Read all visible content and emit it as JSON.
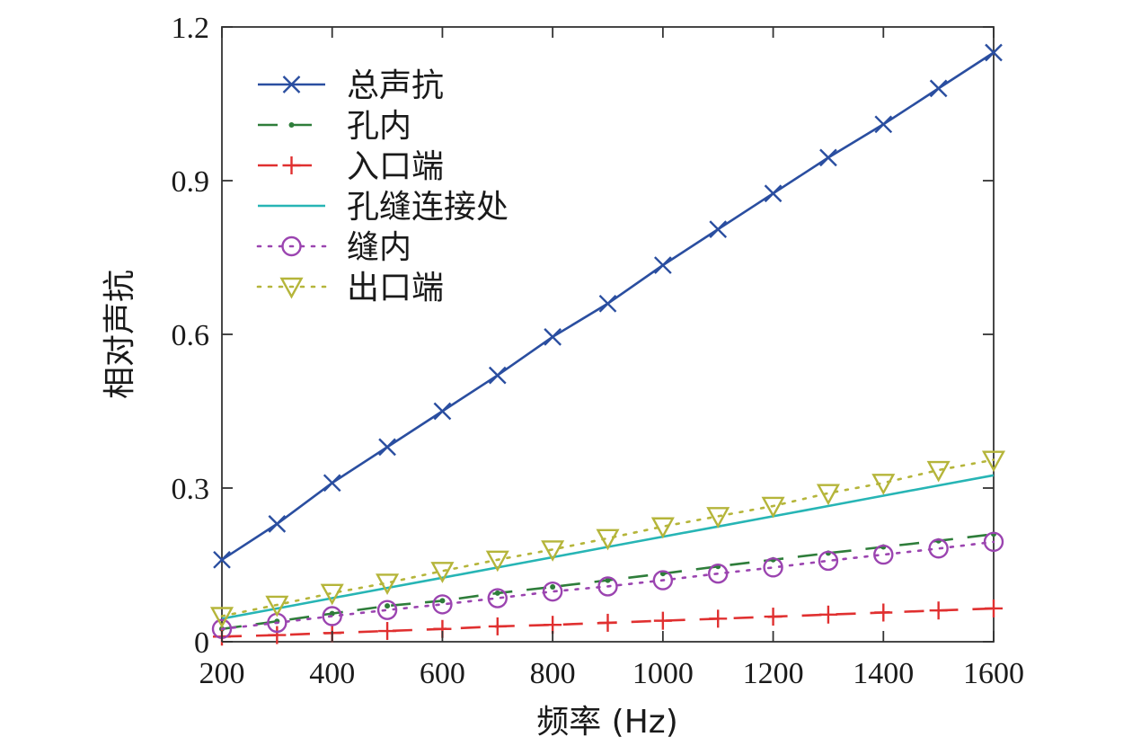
{
  "chart_data": {
    "type": "line",
    "title": "",
    "xlabel": "频率 (Hz)",
    "ylabel": "相对声抗",
    "xlim": [
      200,
      1600
    ],
    "ylim": [
      0,
      1.2
    ],
    "x_ticks": [
      200,
      400,
      600,
      800,
      1000,
      1200,
      1400,
      1600
    ],
    "y_ticks": [
      {
        "value": 0,
        "label": "0"
      },
      {
        "value": 0.3,
        "label": "0.3"
      },
      {
        "value": 0.6,
        "label": "0.6"
      },
      {
        "value": 0.9,
        "label": "0.9"
      },
      {
        "value": 1.2,
        "label": "1.2"
      }
    ],
    "grid": false,
    "legend_position": "top-left",
    "x": [
      200,
      300,
      400,
      500,
      600,
      700,
      800,
      900,
      1000,
      1100,
      1200,
      1300,
      1400,
      1500,
      1600
    ],
    "series": [
      {
        "name": "总声抗",
        "color": "#2a4ea0",
        "line": "solid",
        "marker": "x",
        "values": [
          0.16,
          0.23,
          0.31,
          0.38,
          0.45,
          0.52,
          0.595,
          0.66,
          0.735,
          0.805,
          0.875,
          0.945,
          1.01,
          1.08,
          1.15
        ]
      },
      {
        "name": "孔内",
        "color": "#2e7d3a",
        "line": "dash",
        "marker": "dot",
        "values": [
          0.025,
          0.04,
          0.055,
          0.07,
          0.08,
          0.095,
          0.107,
          0.12,
          0.133,
          0.147,
          0.16,
          0.173,
          0.185,
          0.197,
          0.21
        ]
      },
      {
        "name": "入口端",
        "color": "#e03030",
        "line": "dash",
        "marker": "plus",
        "values": [
          0.01,
          0.013,
          0.017,
          0.021,
          0.025,
          0.03,
          0.033,
          0.037,
          0.041,
          0.045,
          0.049,
          0.053,
          0.057,
          0.061,
          0.065
        ]
      },
      {
        "name": "孔缝连接处",
        "color": "#27b5b5",
        "line": "solid",
        "marker": "none",
        "values": [
          0.045,
          0.065,
          0.085,
          0.105,
          0.125,
          0.145,
          0.165,
          0.185,
          0.205,
          0.225,
          0.245,
          0.265,
          0.285,
          0.305,
          0.325
        ]
      },
      {
        "name": "缝内",
        "color": "#9b44b0",
        "line": "dot",
        "marker": "circle",
        "values": [
          0.025,
          0.037,
          0.05,
          0.062,
          0.073,
          0.085,
          0.098,
          0.108,
          0.12,
          0.133,
          0.145,
          0.158,
          0.17,
          0.182,
          0.195
        ]
      },
      {
        "name": "出口端",
        "color": "#b5b53a",
        "line": "dot",
        "marker": "triangle-down",
        "values": [
          0.05,
          0.072,
          0.095,
          0.115,
          0.138,
          0.16,
          0.18,
          0.202,
          0.225,
          0.245,
          0.265,
          0.29,
          0.31,
          0.335,
          0.355
        ]
      }
    ]
  }
}
